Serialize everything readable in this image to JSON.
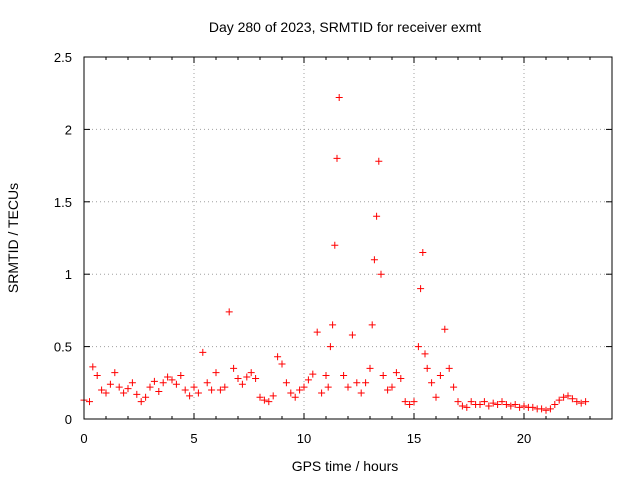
{
  "chart_data": {
    "type": "scatter",
    "title": "Day 280 of 2023, SRMTID for receiver exmt",
    "xlabel": "GPS time / hours",
    "ylabel": "SRMTID / TECUs",
    "xlim": [
      0,
      24
    ],
    "ylim": [
      0,
      2.5
    ],
    "x_ticks": [
      "0",
      "5",
      "10",
      "15",
      "20"
    ],
    "y_ticks": [
      "0",
      "0.5",
      "1",
      "1.5",
      "2",
      "2.5"
    ],
    "grid": true,
    "marker": "plus",
    "color": "#ff0000",
    "series": [
      {
        "name": "SRMTID",
        "x": [
          0.0,
          0.25,
          0.4,
          0.6,
          0.8,
          1.0,
          1.2,
          1.4,
          1.6,
          1.8,
          2.0,
          2.2,
          2.4,
          2.6,
          2.8,
          3.0,
          3.2,
          3.4,
          3.6,
          3.8,
          4.0,
          4.2,
          4.4,
          4.6,
          4.8,
          5.0,
          5.2,
          5.4,
          5.6,
          5.8,
          6.0,
          6.2,
          6.4,
          6.6,
          6.8,
          7.0,
          7.2,
          7.4,
          7.6,
          7.8,
          8.0,
          8.2,
          8.4,
          8.6,
          8.8,
          9.0,
          9.2,
          9.4,
          9.6,
          9.8,
          10.0,
          10.2,
          10.4,
          10.6,
          10.8,
          11.0,
          11.1,
          11.2,
          11.3,
          11.4,
          11.5,
          11.6,
          11.8,
          12.0,
          12.2,
          12.4,
          12.6,
          12.8,
          13.0,
          13.1,
          13.2,
          13.3,
          13.4,
          13.5,
          13.6,
          13.8,
          14.0,
          14.2,
          14.4,
          14.6,
          14.8,
          15.0,
          15.2,
          15.3,
          15.4,
          15.5,
          15.6,
          15.8,
          16.0,
          16.2,
          16.4,
          16.6,
          16.8,
          17.0,
          17.2,
          17.4,
          17.6,
          17.8,
          18.0,
          18.2,
          18.4,
          18.6,
          18.8,
          19.0,
          19.2,
          19.4,
          19.6,
          19.8,
          20.0,
          20.2,
          20.4,
          20.6,
          20.8,
          21.0,
          21.2,
          21.4,
          21.6,
          21.8,
          22.0,
          22.2,
          22.4,
          22.6,
          22.8
        ],
        "y": [
          0.13,
          0.12,
          0.36,
          0.3,
          0.2,
          0.18,
          0.24,
          0.32,
          0.22,
          0.18,
          0.21,
          0.25,
          0.17,
          0.12,
          0.15,
          0.22,
          0.26,
          0.19,
          0.25,
          0.29,
          0.27,
          0.24,
          0.3,
          0.2,
          0.16,
          0.22,
          0.18,
          0.46,
          0.25,
          0.2,
          0.32,
          0.2,
          0.22,
          0.74,
          0.35,
          0.28,
          0.24,
          0.29,
          0.32,
          0.28,
          0.15,
          0.13,
          0.12,
          0.16,
          0.43,
          0.38,
          0.25,
          0.18,
          0.15,
          0.2,
          0.22,
          0.27,
          0.31,
          0.6,
          0.18,
          0.3,
          0.22,
          0.5,
          0.65,
          1.2,
          1.8,
          2.22,
          0.3,
          0.22,
          0.58,
          0.25,
          0.18,
          0.25,
          0.35,
          0.65,
          1.1,
          1.4,
          1.78,
          1.0,
          0.3,
          0.2,
          0.22,
          0.32,
          0.28,
          0.12,
          0.1,
          0.12,
          0.5,
          0.9,
          1.15,
          0.45,
          0.35,
          0.25,
          0.15,
          0.3,
          0.62,
          0.35,
          0.22,
          0.12,
          0.09,
          0.08,
          0.12,
          0.1,
          0.1,
          0.12,
          0.09,
          0.11,
          0.1,
          0.12,
          0.1,
          0.09,
          0.1,
          0.08,
          0.09,
          0.08,
          0.08,
          0.07,
          0.07,
          0.06,
          0.07,
          0.1,
          0.13,
          0.15,
          0.16,
          0.14,
          0.12,
          0.11,
          0.12
        ]
      }
    ]
  }
}
